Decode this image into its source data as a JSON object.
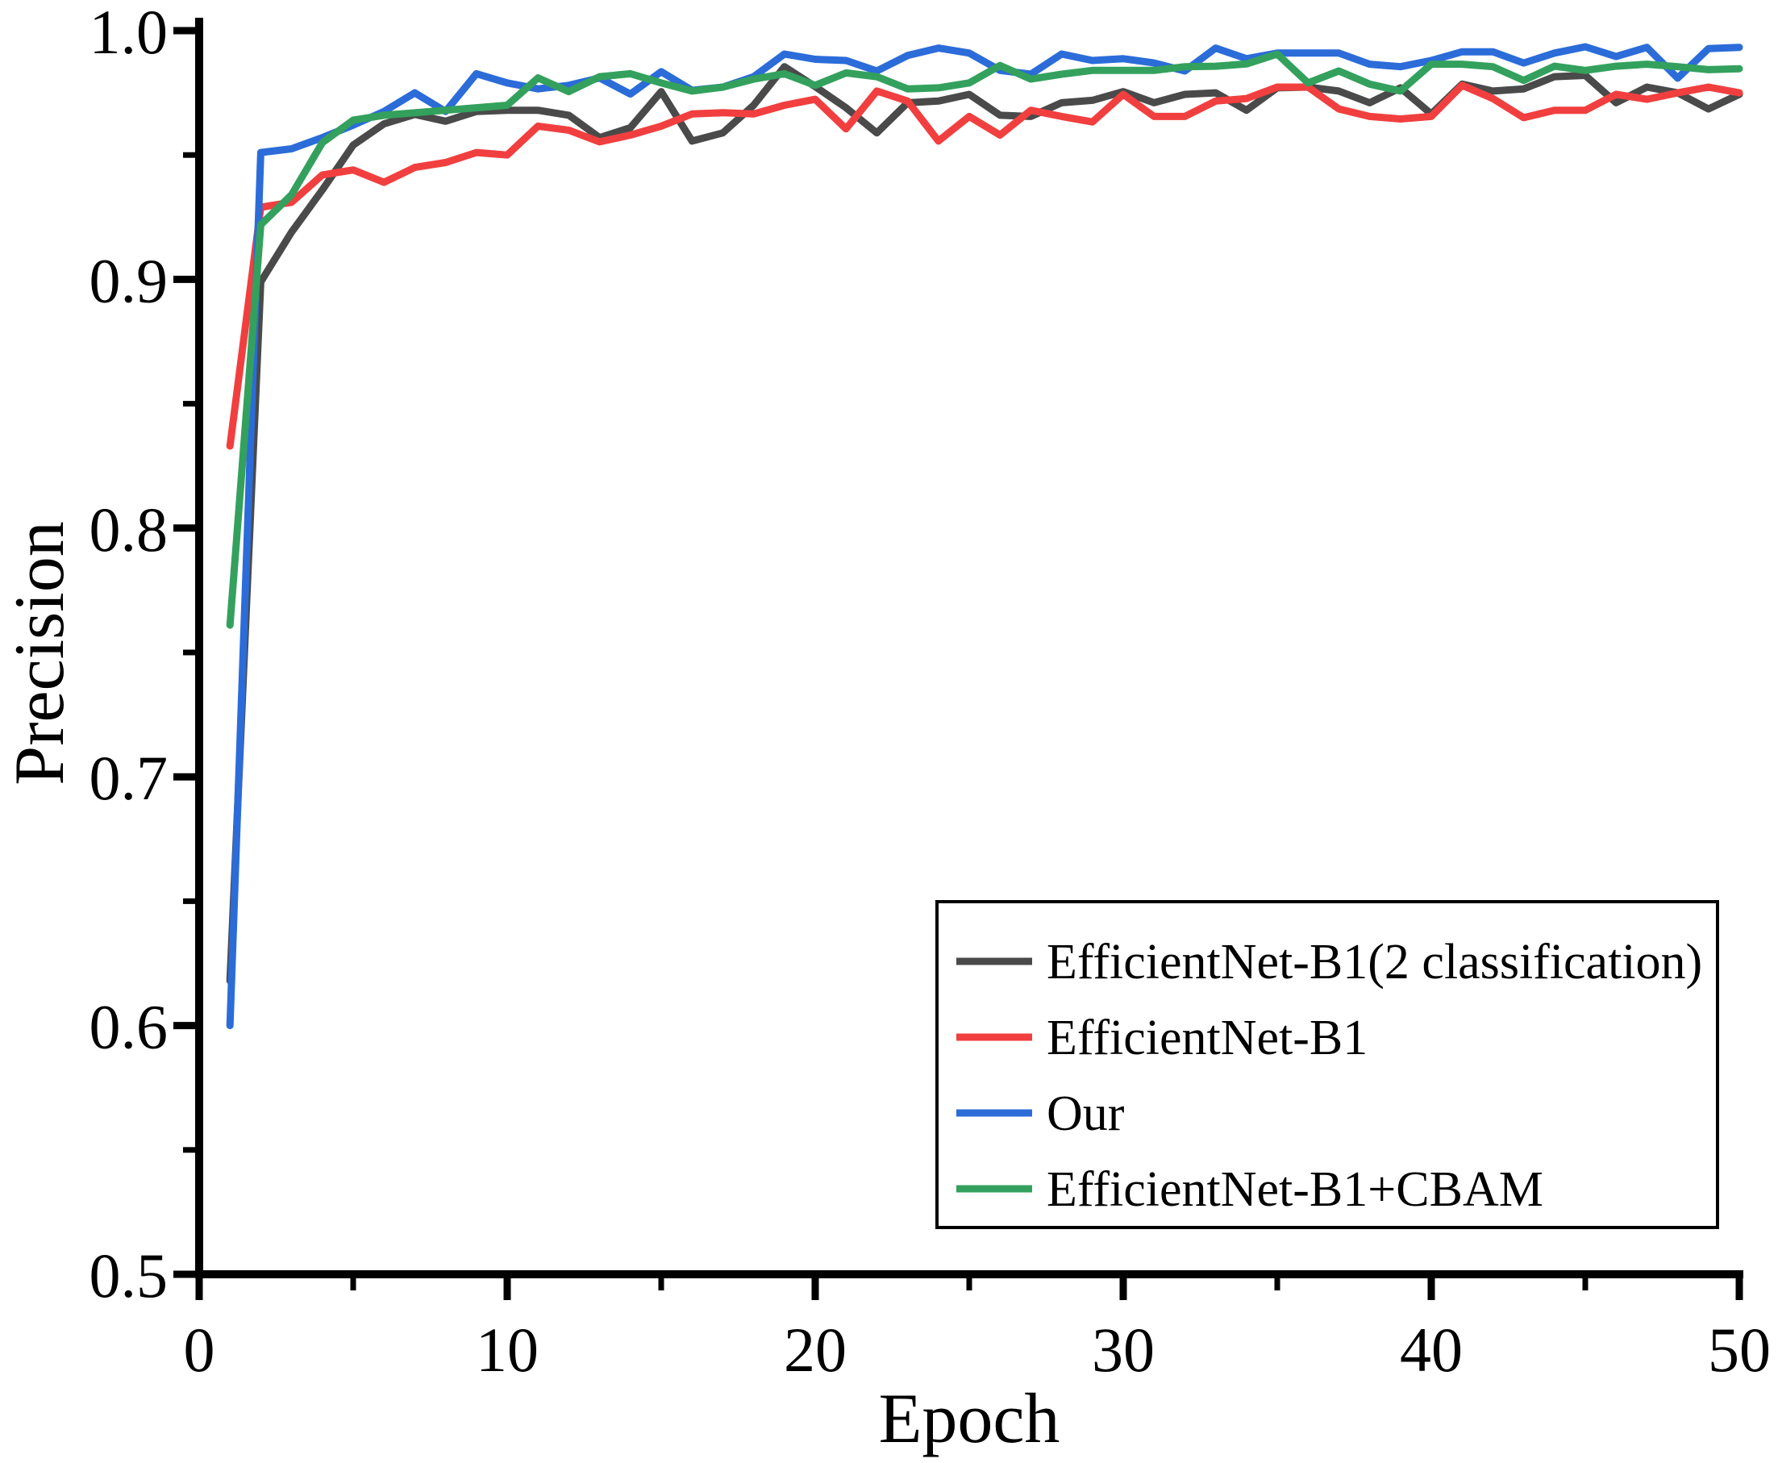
{
  "figure": {
    "background": "#ffffff",
    "axis_color": "#000000"
  },
  "chart_data": {
    "type": "line",
    "title": "",
    "xlabel": "Epoch",
    "ylabel": "Precision",
    "xlim": [
      0,
      50
    ],
    "ylim": [
      0.5,
      1.0
    ],
    "grid": false,
    "legend_position": "lower right",
    "x_major_ticks": [
      0,
      10,
      20,
      30,
      40,
      50
    ],
    "x_major_tick_labels": [
      "0",
      "10",
      "20",
      "30",
      "40",
      "50"
    ],
    "x_minor_ticks": [
      5,
      15,
      25,
      35,
      45
    ],
    "y_major_ticks": [
      0.5,
      0.6,
      0.7,
      0.8,
      0.9,
      1.0
    ],
    "y_major_tick_labels": [
      "0.5",
      "0.6",
      "0.7",
      "0.8",
      "0.9",
      "1.0"
    ],
    "y_minor_ticks": [
      0.55,
      0.65,
      0.75,
      0.85,
      0.95
    ],
    "x": [
      1,
      2,
      3,
      4,
      5,
      6,
      7,
      8,
      9,
      10,
      11,
      12,
      13,
      14,
      15,
      16,
      17,
      18,
      19,
      20,
      21,
      22,
      23,
      24,
      25,
      26,
      27,
      28,
      29,
      30,
      31,
      32,
      33,
      34,
      35,
      36,
      37,
      38,
      39,
      40,
      41,
      42,
      43,
      44,
      45,
      46,
      47,
      48,
      49,
      50
    ],
    "series": [
      {
        "name": "EfficientNet-B1(2 classification)",
        "color": "#4a4a4a",
        "values": [
          0.618,
          0.899,
          0.919,
          0.936,
          0.954,
          0.9625,
          0.9663,
          0.9636,
          0.9675,
          0.968,
          0.968,
          0.966,
          0.957,
          0.961,
          0.9755,
          0.9556,
          0.9589,
          0.97,
          0.9855,
          0.9775,
          0.969,
          0.9589,
          0.971,
          0.9717,
          0.9744,
          0.966,
          0.9655,
          0.971,
          0.972,
          0.9755,
          0.971,
          0.9744,
          0.975,
          0.968,
          0.977,
          0.9773,
          0.9757,
          0.971,
          0.977,
          0.9665,
          0.9785,
          0.9757,
          0.9766,
          0.9815,
          0.982,
          0.971,
          0.9773,
          0.975,
          0.9685,
          0.9744
        ]
      },
      {
        "name": "EfficientNet-B1",
        "color": "#f13f3f",
        "values": [
          0.833,
          0.929,
          0.931,
          0.942,
          0.944,
          0.939,
          0.945,
          0.947,
          0.951,
          0.95,
          0.9616,
          0.96,
          0.9553,
          0.958,
          0.9616,
          0.9665,
          0.967,
          0.9665,
          0.97,
          0.9724,
          0.9605,
          0.9757,
          0.9717,
          0.9556,
          0.9655,
          0.958,
          0.968,
          0.9655,
          0.9633,
          0.9744,
          0.9655,
          0.9655,
          0.9717,
          0.9727,
          0.9773,
          0.9773,
          0.9685,
          0.9655,
          0.9645,
          0.9655,
          0.978,
          0.9727,
          0.965,
          0.968,
          0.968,
          0.9744,
          0.9724,
          0.975,
          0.9773,
          0.975
        ]
      },
      {
        "name": "Our",
        "color": "#2b6cd9",
        "values": [
          0.6,
          0.951,
          0.9525,
          0.957,
          0.962,
          0.9675,
          0.975,
          0.9675,
          0.9827,
          0.979,
          0.9766,
          0.978,
          0.981,
          0.9745,
          0.9835,
          0.976,
          0.9773,
          0.9815,
          0.9906,
          0.9885,
          0.988,
          0.9838,
          0.99,
          0.993,
          0.991,
          0.984,
          0.9825,
          0.9906,
          0.988,
          0.9887,
          0.987,
          0.9838,
          0.993,
          0.9887,
          0.991,
          0.991,
          0.991,
          0.9865,
          0.9855,
          0.988,
          0.9915,
          0.9915,
          0.987,
          0.991,
          0.9935,
          0.9896,
          0.9933,
          0.9809,
          0.9928,
          0.9933
        ]
      },
      {
        "name": "EfficientNet-B1+CBAM",
        "color": "#33a15d",
        "values": [
          0.761,
          0.922,
          0.934,
          0.955,
          0.964,
          0.966,
          0.967,
          0.968,
          0.969,
          0.97,
          0.981,
          0.9755,
          0.9815,
          0.9827,
          0.979,
          0.9757,
          0.9773,
          0.9805,
          0.9827,
          0.978,
          0.983,
          0.9815,
          0.9766,
          0.977,
          0.979,
          0.986,
          0.9805,
          0.9825,
          0.984,
          0.984,
          0.984,
          0.9855,
          0.9857,
          0.9866,
          0.9906,
          0.979,
          0.9838,
          0.9785,
          0.9757,
          0.9865,
          0.9865,
          0.9855,
          0.98,
          0.9857,
          0.984,
          0.9857,
          0.9865,
          0.9855,
          0.9843,
          0.9847
        ]
      }
    ]
  }
}
